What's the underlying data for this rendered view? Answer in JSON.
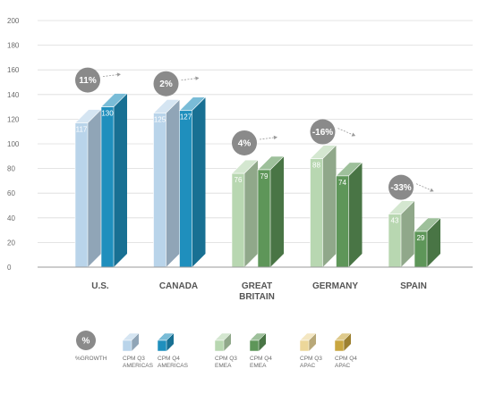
{
  "chart_data": {
    "type": "bar",
    "ylim": [
      0,
      200
    ],
    "yticks": [
      0,
      20,
      40,
      60,
      80,
      100,
      120,
      140,
      160,
      180,
      200
    ],
    "grid": true,
    "categories": [
      {
        "label_lines": [
          "U.S."
        ],
        "region": "AMERICAS",
        "q3": 117,
        "q4": 130,
        "growth": "11%"
      },
      {
        "label_lines": [
          "CANADA"
        ],
        "region": "AMERICAS",
        "q3": 125,
        "q4": 127,
        "growth": "2%"
      },
      {
        "label_lines": [
          "GREAT",
          "BRITAIN"
        ],
        "region": "EMEA",
        "q3": 76,
        "q4": 79,
        "growth": "4%"
      },
      {
        "label_lines": [
          "GERMANY"
        ],
        "region": "EMEA",
        "q3": 88,
        "q4": 74,
        "growth": "-16%"
      },
      {
        "label_lines": [
          "SPAIN"
        ],
        "region": "EMEA",
        "q3": 43,
        "q4": 29,
        "growth": "-33%"
      }
    ],
    "colors": {
      "AMERICAS": {
        "q3": "#b9d4ea",
        "q4": "#1f8fbd"
      },
      "EMEA": {
        "q3": "#b8d7b1",
        "q4": "#5e9659"
      },
      "APAC": {
        "q3": "#ecd79a",
        "q4": "#c9a640"
      }
    },
    "badge_color": "#8a8a8a",
    "legend": {
      "growth_badge": "%",
      "growth_label": "%GROWTH",
      "items": [
        {
          "region": "AMERICAS",
          "quarter": "q3",
          "line1": "CPM Q3",
          "line2": "AMERICAS"
        },
        {
          "region": "AMERICAS",
          "quarter": "q4",
          "line1": "CPM Q4",
          "line2": "AMERICAS"
        },
        {
          "region": "EMEA",
          "quarter": "q3",
          "line1": "CPM Q3",
          "line2": "EMEA"
        },
        {
          "region": "EMEA",
          "quarter": "q4",
          "line1": "CPM Q4",
          "line2": "EMEA"
        },
        {
          "region": "APAC",
          "quarter": "q3",
          "line1": "CPM Q3",
          "line2": "APAC"
        },
        {
          "region": "APAC",
          "quarter": "q4",
          "line1": "CPM Q4",
          "line2": "APAC"
        }
      ]
    }
  }
}
